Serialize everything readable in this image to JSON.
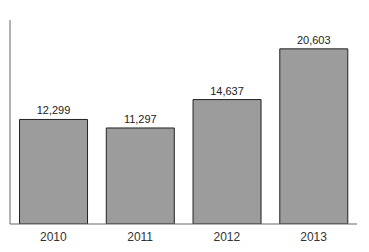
{
  "chart_data": {
    "type": "bar",
    "categories": [
      "2010",
      "2011",
      "2012",
      "2013"
    ],
    "values": [
      12299,
      11297,
      14637,
      20603
    ],
    "value_labels": [
      "12,299",
      "11,297",
      "14,637",
      "20,603"
    ],
    "color": "#9c9c9c",
    "ylim": [
      0,
      24000
    ],
    "data_labels": true,
    "tick_labels": "x"
  }
}
